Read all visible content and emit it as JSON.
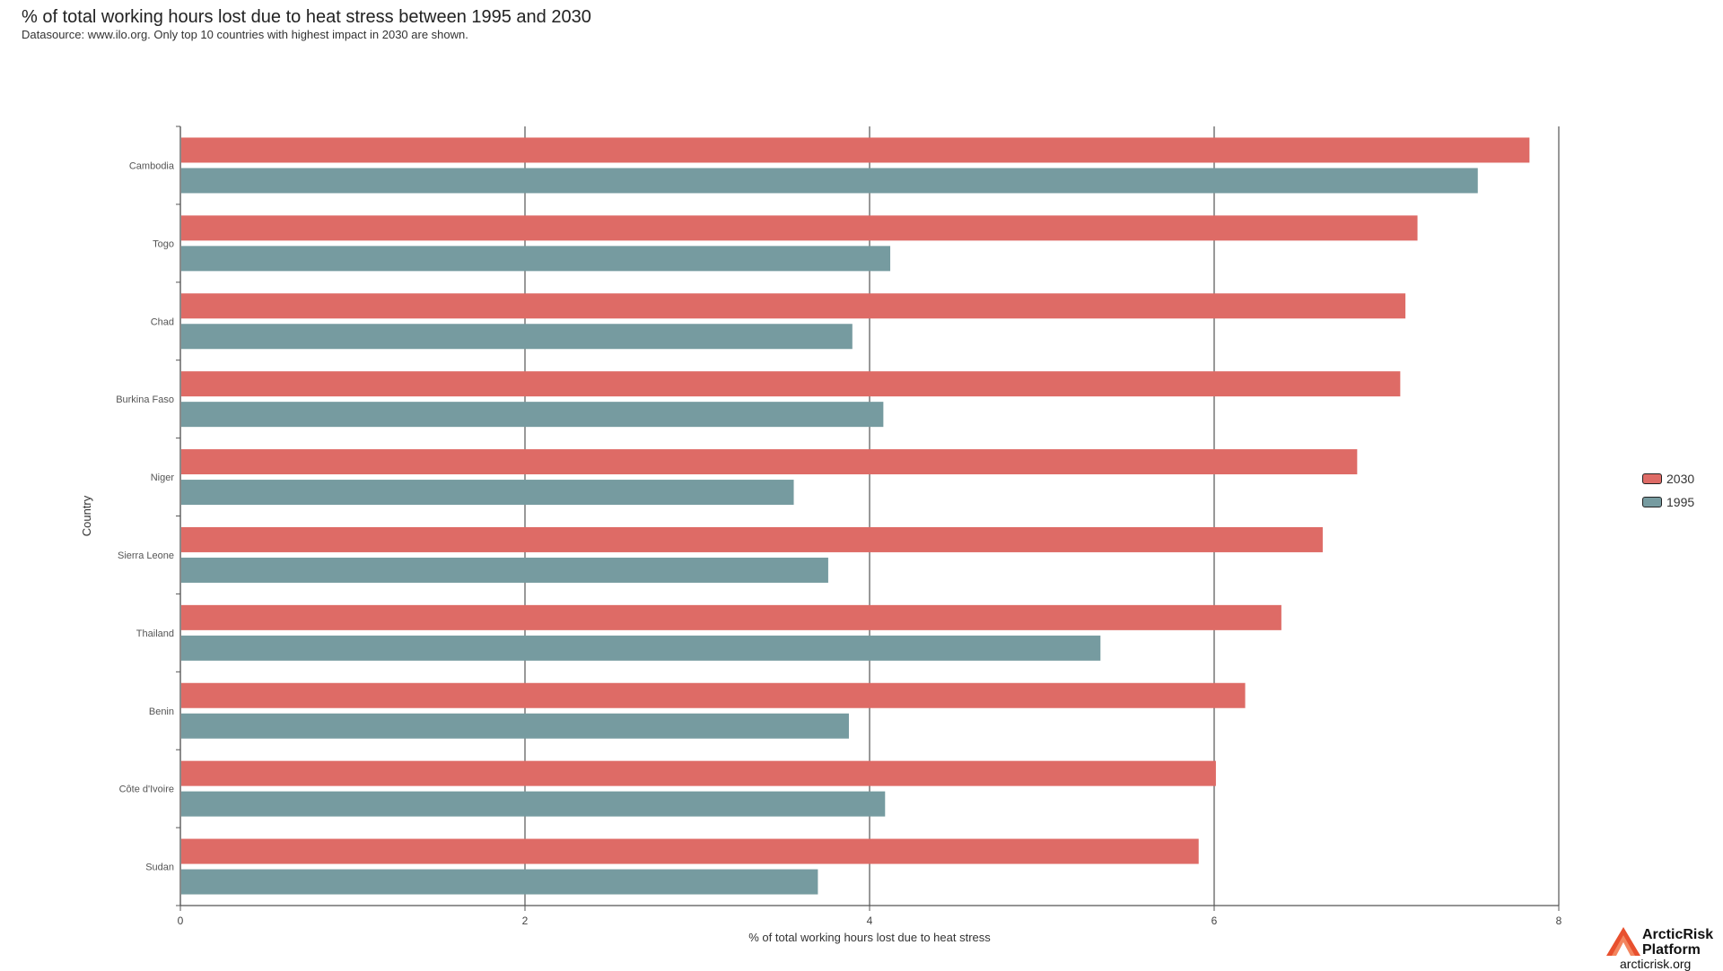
{
  "header": {
    "title": "% of total working hours lost due to heat stress between 1995 and 2030",
    "subtitle": "Datasource: www.ilo.org. Only top 10 countries with highest impact in 2030 are shown."
  },
  "chart_data": {
    "type": "bar",
    "orientation": "horizontal",
    "categories": [
      "Cambodia",
      "Togo",
      "Chad",
      "Burkina Faso",
      "Niger",
      "Sierra Leone",
      "Thailand",
      "Benin",
      "Côte d'Ivoire",
      "Sudan"
    ],
    "series": [
      {
        "name": "2030",
        "color": "#de6b66",
        "values": [
          7.83,
          7.18,
          7.11,
          7.08,
          6.83,
          6.63,
          6.39,
          6.18,
          6.01,
          5.91
        ]
      },
      {
        "name": "1995",
        "color": "#769ba0",
        "values": [
          7.53,
          4.12,
          3.9,
          4.08,
          3.56,
          3.76,
          5.34,
          3.88,
          4.09,
          3.7
        ]
      }
    ],
    "xlabel": "% of total working hours lost due to heat stress",
    "ylabel": "Country",
    "xlim": [
      0,
      8
    ],
    "xticks": [
      0,
      2,
      4,
      6,
      8
    ],
    "grid": true,
    "legend_position": "right"
  },
  "legend": {
    "items": [
      {
        "label": "2030",
        "color": "#de6b66"
      },
      {
        "label": "1995",
        "color": "#769ba0"
      }
    ]
  },
  "logo": {
    "name_line1": "ArcticRisk",
    "name_line2": "Platform",
    "url": "arcticrisk.org"
  }
}
